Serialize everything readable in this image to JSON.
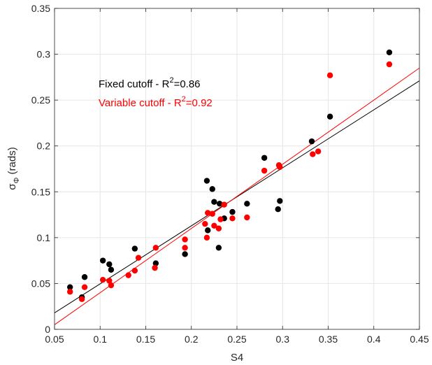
{
  "chart_data": {
    "type": "scatter",
    "xlabel": "S4",
    "ylabel": "σ",
    "ylabel_subscript": "Φ",
    "ylabel_suffix": " (rads)",
    "xlim": [
      0.05,
      0.45
    ],
    "ylim": [
      0,
      0.35
    ],
    "xticks": [
      0.05,
      0.1,
      0.15,
      0.2,
      0.25,
      0.3,
      0.35,
      0.4,
      0.45
    ],
    "yticks": [
      0,
      0.05,
      0.1,
      0.15,
      0.2,
      0.25,
      0.3,
      0.35
    ],
    "xtick_labels": [
      "0.05",
      "0.1",
      "0.15",
      "0.2",
      "0.25",
      "0.3",
      "0.35",
      "0.4",
      "0.45"
    ],
    "ytick_labels": [
      "0",
      "0.05",
      "0.1",
      "0.15",
      "0.2",
      "0.25",
      "0.3",
      "0.35"
    ],
    "grid": true,
    "series": [
      {
        "name": "Fixed cutoff",
        "color": "#000000",
        "points": [
          [
            0.067,
            0.046
          ],
          [
            0.08,
            0.035
          ],
          [
            0.083,
            0.057
          ],
          [
            0.103,
            0.075
          ],
          [
            0.11,
            0.071
          ],
          [
            0.112,
            0.065
          ],
          [
            0.138,
            0.088
          ],
          [
            0.161,
            0.072
          ],
          [
            0.193,
            0.082
          ],
          [
            0.217,
            0.162
          ],
          [
            0.218,
            0.108
          ],
          [
            0.223,
            0.153
          ],
          [
            0.225,
            0.139
          ],
          [
            0.23,
            0.089
          ],
          [
            0.231,
            0.137
          ],
          [
            0.236,
            0.121
          ],
          [
            0.245,
            0.128
          ],
          [
            0.261,
            0.137
          ],
          [
            0.28,
            0.187
          ],
          [
            0.295,
            0.131
          ],
          [
            0.297,
            0.14
          ],
          [
            0.332,
            0.205
          ],
          [
            0.352,
            0.232
          ],
          [
            0.417,
            0.302
          ]
        ],
        "fit": [
          [
            0.05,
            0.018
          ],
          [
            0.45,
            0.271
          ]
        ]
      },
      {
        "name": "Variable cutoff",
        "color": "#ff0000",
        "points": [
          [
            0.067,
            0.041
          ],
          [
            0.08,
            0.033
          ],
          [
            0.083,
            0.046
          ],
          [
            0.103,
            0.054
          ],
          [
            0.11,
            0.053
          ],
          [
            0.112,
            0.048
          ],
          [
            0.131,
            0.059
          ],
          [
            0.138,
            0.064
          ],
          [
            0.142,
            0.078
          ],
          [
            0.16,
            0.067
          ],
          [
            0.161,
            0.089
          ],
          [
            0.193,
            0.089
          ],
          [
            0.193,
            0.098
          ],
          [
            0.215,
            0.115
          ],
          [
            0.217,
            0.1
          ],
          [
            0.218,
            0.127
          ],
          [
            0.223,
            0.126
          ],
          [
            0.225,
            0.113
          ],
          [
            0.23,
            0.11
          ],
          [
            0.232,
            0.12
          ],
          [
            0.236,
            0.136
          ],
          [
            0.245,
            0.121
          ],
          [
            0.261,
            0.122
          ],
          [
            0.28,
            0.173
          ],
          [
            0.296,
            0.179
          ],
          [
            0.297,
            0.177
          ],
          [
            0.333,
            0.191
          ],
          [
            0.339,
            0.194
          ],
          [
            0.352,
            0.277
          ],
          [
            0.417,
            0.289
          ]
        ],
        "fit": [
          [
            0.05,
            0.005
          ],
          [
            0.45,
            0.285
          ]
        ]
      }
    ],
    "annotations": [
      {
        "text": "Fixed cutoff - R",
        "sup": "2",
        "suffix": "=0.86",
        "color": "#000000"
      },
      {
        "text": "Variable cutoff - R",
        "sup": "2",
        "suffix": "=0.92",
        "color": "#ff0000"
      }
    ]
  }
}
